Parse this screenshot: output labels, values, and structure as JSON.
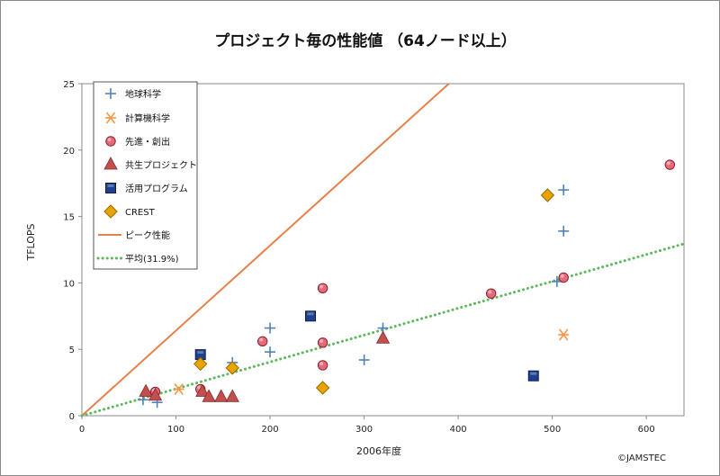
{
  "chart_data": {
    "type": "scatter",
    "title": "プロジェクト毎の性能値 （64ノード以上）",
    "xlabel": "2006年度",
    "ylabel": "TFLOPS",
    "xlim": [
      0,
      640
    ],
    "ylim": [
      0,
      25
    ],
    "xticks": [
      0,
      100,
      200,
      300,
      400,
      500,
      600
    ],
    "yticks": [
      0,
      5,
      10,
      15,
      20,
      25
    ],
    "grid": false,
    "legend_position": "top-left",
    "series": [
      {
        "name": "地球科学",
        "marker": "plus",
        "color": "#4f81bd",
        "points": [
          [
            65,
            1.2
          ],
          [
            80,
            1.0
          ],
          [
            160,
            4.0
          ],
          [
            200,
            4.8
          ],
          [
            200,
            6.6
          ],
          [
            300,
            4.2
          ],
          [
            320,
            6.6
          ],
          [
            505,
            10.1
          ],
          [
            512,
            17.0
          ],
          [
            512,
            13.9
          ]
        ]
      },
      {
        "name": "計算機科学",
        "marker": "star",
        "color": "#f79646",
        "points": [
          [
            103,
            2.0
          ],
          [
            512,
            6.1
          ]
        ]
      },
      {
        "name": "先進・創出",
        "marker": "circle",
        "color": "#e46a7a",
        "points": [
          [
            78,
            1.8
          ],
          [
            126,
            2.0
          ],
          [
            192,
            5.6
          ],
          [
            256,
            9.6
          ],
          [
            256,
            5.5
          ],
          [
            256,
            3.8
          ],
          [
            435,
            9.2
          ],
          [
            512,
            10.4
          ],
          [
            625,
            18.9
          ]
        ]
      },
      {
        "name": "共生プロジェクト",
        "marker": "triangle",
        "color": "#c0504d",
        "points": [
          [
            68,
            1.8
          ],
          [
            78,
            1.5
          ],
          [
            128,
            1.8
          ],
          [
            135,
            1.4
          ],
          [
            148,
            1.4
          ],
          [
            160,
            1.4
          ],
          [
            320,
            5.8
          ]
        ]
      },
      {
        "name": "活用プログラム",
        "marker": "square",
        "color": "#1f3f8f",
        "points": [
          [
            126,
            4.6
          ],
          [
            243,
            7.5
          ],
          [
            480,
            3.0
          ]
        ]
      },
      {
        "name": "CREST",
        "marker": "diamond",
        "color": "#e8a400",
        "points": [
          [
            126,
            3.9
          ],
          [
            160,
            3.6
          ],
          [
            256,
            2.1
          ],
          [
            495,
            16.6
          ]
        ]
      }
    ],
    "lines": [
      {
        "name": "ピーク性能",
        "style": "solid",
        "color": "#e8804a",
        "points": [
          [
            0,
            0
          ],
          [
            390,
            25
          ]
        ]
      },
      {
        "name": "平均(31.9%)",
        "style": "dotted",
        "color": "#5cb85c",
        "points": [
          [
            0,
            0
          ],
          [
            640,
            12.95
          ]
        ]
      }
    ]
  },
  "copyright": "©JAMSTEC"
}
